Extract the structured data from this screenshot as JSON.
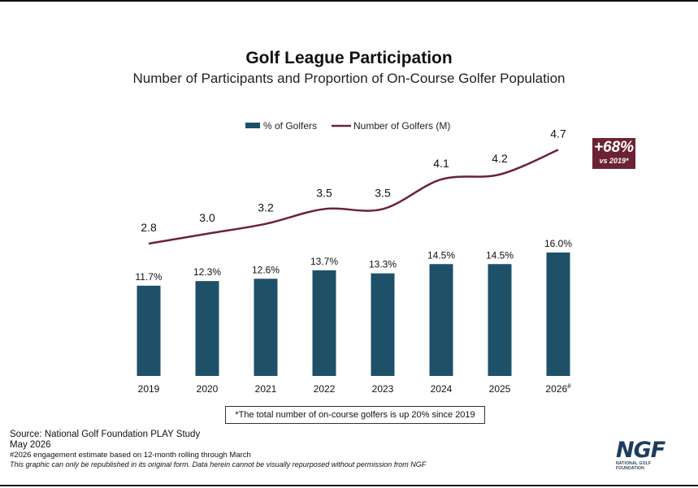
{
  "title": "Golf League Participation",
  "subtitle": "Number of Participants and Proportion of On-Course Golfer Population",
  "badge": {
    "main": "+68%",
    "sub": "vs 2019*"
  },
  "note": "*The total number of on-course golfers is up 20% since 2019",
  "footer": {
    "source": "Source: National Golf Foundation PLAY Study",
    "date": "May 2026",
    "footnote": "#2026 engagement estimate based on 12-month rolling through March",
    "disclaimer": "This graphic can only be republished in its original form. Data herein cannot be visually repurposed without permission from NGF"
  },
  "logo": {
    "mark": "NGF",
    "tagline": "NATIONAL GOLF FOUNDATION"
  },
  "colors": {
    "bar": "#1e5168",
    "line": "#6b2333",
    "badge": "#6b2333",
    "logo": "#1e3d5c"
  },
  "chart_data": {
    "type": "bar",
    "categories": [
      "2019",
      "2020",
      "2021",
      "2022",
      "2023",
      "2024",
      "2025",
      "2026"
    ],
    "category_suffix": {
      "2026": "#"
    },
    "series": [
      {
        "name": "% of Golfers",
        "kind": "bar",
        "values": [
          11.7,
          12.3,
          12.6,
          13.7,
          13.3,
          14.5,
          14.5,
          16.0
        ],
        "labels": [
          "11.7%",
          "12.3%",
          "12.6%",
          "13.7%",
          "13.3%",
          "14.5%",
          "14.5%",
          "16.0%"
        ]
      },
      {
        "name": "Number of Golfers (M)",
        "kind": "line",
        "values": [
          2.8,
          3.0,
          3.2,
          3.5,
          3.5,
          4.1,
          4.2,
          4.7
        ],
        "labels": [
          "2.8",
          "3.0",
          "3.2",
          "3.5",
          "3.5",
          "4.1",
          "4.2",
          "4.7"
        ]
      }
    ],
    "legend_position": "top-center",
    "grid": false
  }
}
